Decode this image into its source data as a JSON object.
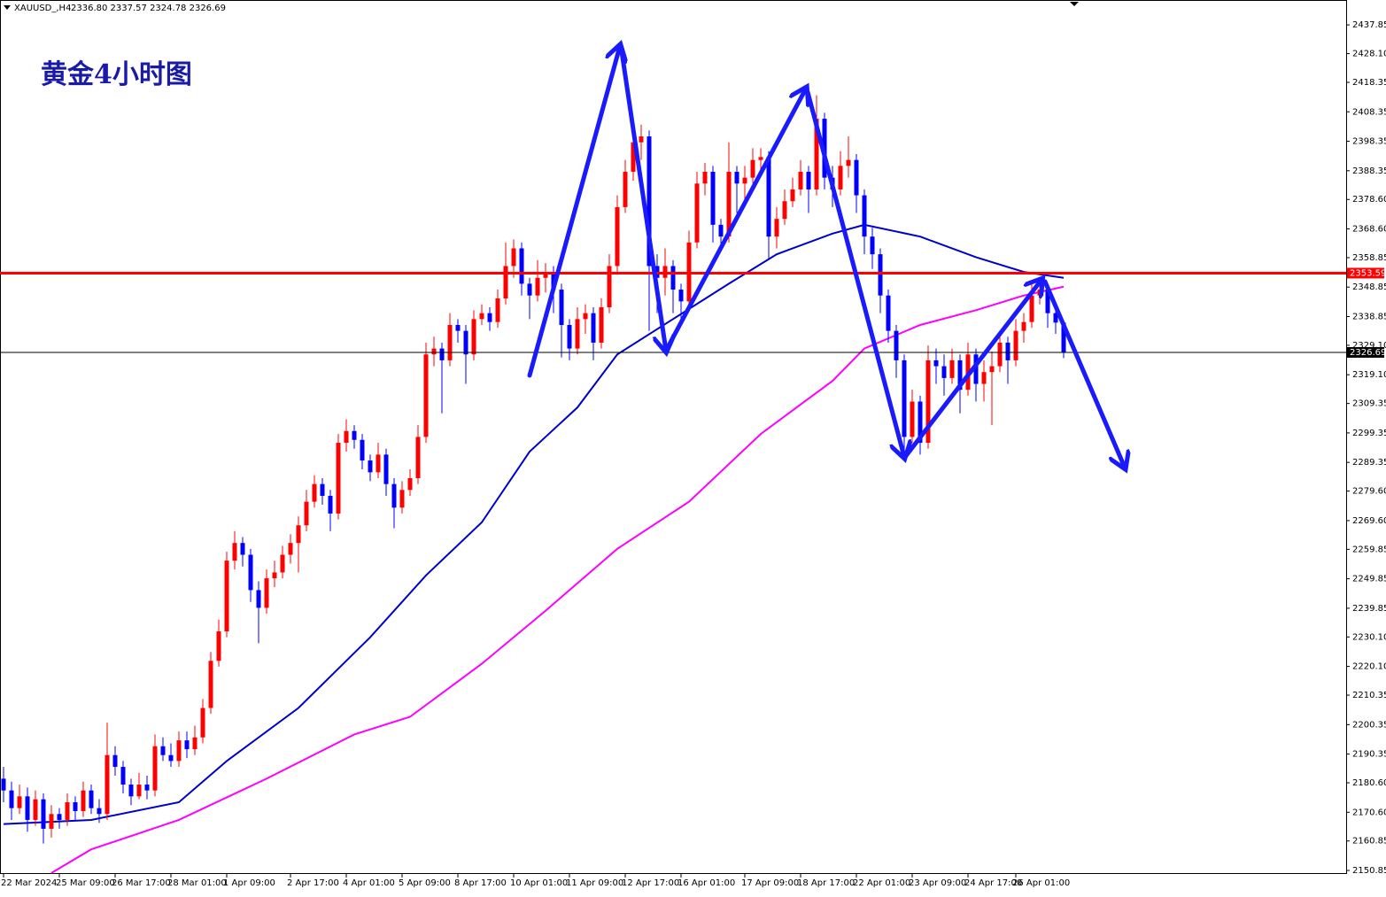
{
  "chart_data": {
    "type": "candlestick",
    "symbol": "XAUUSD_,H4",
    "ohlc_text": "2336.80 2337.57 2324.78 2326.69",
    "title": "黄金4小时图",
    "up_color": "#ff0000",
    "down_color": "#0000ff",
    "ylim": [
      2149.65,
      2446.3
    ],
    "yticks": [
      2437.85,
      {
        "value": 2428.1,
        "label": "2428.10"
      },
      2418.35,
      2408.35,
      2398.35,
      2388.35,
      {
        "value": 2378.6,
        "label": "2378.60"
      },
      {
        "value": 2368.6,
        "label": "2368.60"
      },
      2358.85,
      2348.85,
      2338.85,
      {
        "value": 2329.1,
        "label": "2329.10"
      },
      {
        "value": 2319.1,
        "label": "2319.10"
      },
      2309.35,
      2299.35,
      2289.35,
      {
        "value": 2279.6,
        "label": "2279.60"
      },
      {
        "value": 2269.6,
        "label": "2269.60"
      },
      2259.85,
      2249.85,
      2239.85,
      {
        "value": 2230.1,
        "label": "2230.10"
      },
      {
        "value": 2220.1,
        "label": "2220.10"
      },
      2210.35,
      2200.35,
      2190.35,
      {
        "value": 2180.6,
        "label": "2180.60"
      },
      {
        "value": 2170.6,
        "label": "2170.60"
      },
      2160.85,
      2150.85
    ],
    "categories": [
      "22 Mar 2024",
      null,
      null,
      null,
      null,
      null,
      null,
      "25 Mar 09:00",
      null,
      null,
      null,
      null,
      null,
      null,
      "26 Mar 17:00",
      null,
      null,
      null,
      null,
      null,
      null,
      "28 Mar 01:00",
      null,
      null,
      null,
      null,
      null,
      null,
      "1 Apr 09:00",
      null,
      null,
      null,
      null,
      null,
      null,
      null,
      "2 Apr 17:00",
      null,
      null,
      null,
      null,
      null,
      null,
      "4 Apr 01:00",
      null,
      null,
      null,
      null,
      null,
      null,
      "5 Apr 09:00",
      null,
      null,
      null,
      null,
      null,
      null,
      "8 Apr 17:00",
      null,
      null,
      null,
      null,
      null,
      null,
      "10 Apr 01:00",
      null,
      null,
      null,
      null,
      null,
      null,
      "11 Apr 09:00",
      null,
      null,
      null,
      null,
      null,
      null,
      "12 Apr 17:00",
      null,
      null,
      null,
      null,
      null,
      null,
      "16 Apr 01:00",
      null,
      null,
      null,
      null,
      null,
      null,
      null,
      "17 Apr 09:00",
      null,
      null,
      null,
      null,
      null,
      null,
      "18 Apr 17:00",
      null,
      null,
      null,
      null,
      null,
      null,
      "22 Apr 01:00",
      null,
      null,
      null,
      null,
      null,
      null,
      "23 Apr 09:00",
      null,
      null,
      null,
      null,
      null,
      null,
      "24 Apr 17:00",
      null,
      null,
      null,
      null,
      null,
      "26 Apr 01:00"
    ],
    "candles": [
      [
        2182,
        2186,
        2174,
        2178
      ],
      [
        2178,
        2181,
        2168,
        2172
      ],
      [
        2172,
        2180,
        2170,
        2176
      ],
      [
        2176,
        2179,
        2164,
        2168
      ],
      [
        2168,
        2178,
        2166,
        2175
      ],
      [
        2175,
        2177,
        2160,
        2165
      ],
      [
        2165,
        2173,
        2162,
        2170
      ],
      [
        2170,
        2172,
        2165,
        2168
      ],
      [
        2168,
        2177,
        2166,
        2174
      ],
      [
        2174,
        2176,
        2168,
        2171
      ],
      [
        2171,
        2181,
        2169,
        2178
      ],
      [
        2178,
        2180,
        2170,
        2172
      ],
      [
        2172,
        2175,
        2167,
        2170
      ],
      [
        2170,
        2201,
        2168,
        2190
      ],
      [
        2190,
        2193,
        2183,
        2186
      ],
      [
        2186,
        2188,
        2177,
        2180
      ],
      [
        2180,
        2182,
        2173,
        2176
      ],
      [
        2176,
        2184,
        2175,
        2180
      ],
      [
        2180,
        2183,
        2175,
        2178
      ],
      [
        2178,
        2197,
        2176,
        2193
      ],
      [
        2193,
        2196,
        2188,
        2190
      ],
      [
        2190,
        2194,
        2186,
        2188
      ],
      [
        2188,
        2198,
        2186,
        2195
      ],
      [
        2195,
        2198,
        2189,
        2192
      ],
      [
        2192,
        2200,
        2190,
        2196
      ],
      [
        2196,
        2209,
        2194,
        2206
      ],
      [
        2206,
        2225,
        2204,
        2222
      ],
      [
        2222,
        2236,
        2220,
        2232
      ],
      [
        2232,
        2259,
        2230,
        2256
      ],
      [
        2256,
        2266,
        2253,
        2262
      ],
      [
        2262,
        2264,
        2254,
        2258
      ],
      [
        2258,
        2260,
        2242,
        2246
      ],
      [
        2246,
        2249,
        2228,
        2240
      ],
      [
        2240,
        2253,
        2238,
        2250
      ],
      [
        2250,
        2256,
        2247,
        2252
      ],
      [
        2252,
        2261,
        2250,
        2258
      ],
      [
        2258,
        2265,
        2255,
        2262
      ],
      [
        2262,
        2271,
        2252,
        2268
      ],
      [
        2268,
        2280,
        2266,
        2276
      ],
      [
        2276,
        2285,
        2274,
        2282
      ],
      [
        2282,
        2284,
        2275,
        2278
      ],
      [
        2278,
        2280,
        2266,
        2272
      ],
      [
        2272,
        2299,
        2270,
        2296
      ],
      [
        2296,
        2304,
        2293,
        2300
      ],
      [
        2300,
        2302,
        2294,
        2297
      ],
      [
        2297,
        2299,
        2287,
        2290
      ],
      [
        2290,
        2292,
        2283,
        2286
      ],
      [
        2286,
        2296,
        2284,
        2292
      ],
      [
        2292,
        2294,
        2278,
        2282
      ],
      [
        2282,
        2284,
        2267,
        2274
      ],
      [
        2274,
        2283,
        2272,
        2280
      ],
      [
        2280,
        2287,
        2278,
        2284
      ],
      [
        2284,
        2302,
        2282,
        2298
      ],
      [
        2298,
        2330,
        2296,
        2326
      ],
      [
        2326,
        2332,
        2322,
        2328
      ],
      [
        2328,
        2330,
        2306,
        2324
      ],
      [
        2324,
        2340,
        2322,
        2336
      ],
      [
        2336,
        2338,
        2330,
        2334
      ],
      [
        2334,
        2336,
        2316,
        2326
      ],
      [
        2326,
        2341,
        2324,
        2338
      ],
      [
        2338,
        2343,
        2336,
        2340
      ],
      [
        2340,
        2342,
        2334,
        2337
      ],
      [
        2337,
        2348,
        2335,
        2345
      ],
      [
        2345,
        2364,
        2343,
        2356
      ],
      [
        2356,
        2365,
        2352,
        2362
      ],
      [
        2362,
        2364,
        2346,
        2350
      ],
      [
        2350,
        2352,
        2338,
        2346
      ],
      [
        2346,
        2358,
        2344,
        2352
      ],
      [
        2352,
        2357,
        2347,
        2354
      ],
      [
        2354,
        2356,
        2340,
        2348
      ],
      [
        2348,
        2350,
        2325,
        2336
      ],
      [
        2336,
        2338,
        2324,
        2328
      ],
      [
        2328,
        2342,
        2326,
        2338
      ],
      [
        2338,
        2343,
        2333,
        2340
      ],
      [
        2340,
        2342,
        2324,
        2330
      ],
      [
        2330,
        2345,
        2328,
        2342
      ],
      [
        2342,
        2360,
        2340,
        2356
      ],
      [
        2356,
        2380,
        2354,
        2376
      ],
      [
        2376,
        2392,
        2374,
        2388
      ],
      [
        2388,
        2402,
        2385,
        2398
      ],
      [
        2398,
        2404,
        2392,
        2400
      ],
      [
        2400,
        2402,
        2334,
        2356
      ],
      [
        2356,
        2360,
        2340,
        2352
      ],
      [
        2352,
        2362,
        2346,
        2356
      ],
      [
        2356,
        2358,
        2340,
        2348
      ],
      [
        2348,
        2350,
        2338,
        2344
      ],
      [
        2344,
        2368,
        2342,
        2364
      ],
      [
        2364,
        2388,
        2362,
        2384
      ],
      [
        2384,
        2391,
        2380,
        2388
      ],
      [
        2388,
        2390,
        2364,
        2370
      ],
      [
        2370,
        2372,
        2362,
        2366
      ],
      [
        2366,
        2398,
        2364,
        2388
      ],
      [
        2388,
        2390,
        2374,
        2384
      ],
      [
        2384,
        2390,
        2378,
        2386
      ],
      [
        2386,
        2396,
        2384,
        2392
      ],
      [
        2392,
        2396,
        2388,
        2393
      ],
      [
        2393,
        2395,
        2358,
        2366
      ],
      [
        2366,
        2376,
        2362,
        2372
      ],
      [
        2372,
        2382,
        2370,
        2378
      ],
      [
        2378,
        2386,
        2376,
        2382
      ],
      [
        2382,
        2392,
        2380,
        2388
      ],
      [
        2388,
        2390,
        2374,
        2382
      ],
      [
        2382,
        2414,
        2380,
        2406
      ],
      [
        2406,
        2408,
        2382,
        2386
      ],
      [
        2386,
        2390,
        2376,
        2382
      ],
      [
        2382,
        2395,
        2380,
        2390
      ],
      [
        2390,
        2400,
        2386,
        2392
      ],
      [
        2392,
        2394,
        2374,
        2380
      ],
      [
        2380,
        2382,
        2360,
        2366
      ],
      [
        2366,
        2369,
        2355,
        2360
      ],
      [
        2360,
        2362,
        2340,
        2346
      ],
      [
        2346,
        2348,
        2330,
        2334
      ],
      [
        2334,
        2336,
        2318,
        2324
      ],
      [
        2324,
        2326,
        2292,
        2298
      ],
      [
        2298,
        2314,
        2296,
        2310
      ],
      [
        2310,
        2312,
        2292,
        2296
      ],
      [
        2296,
        2329,
        2294,
        2324
      ],
      [
        2324,
        2328,
        2316,
        2322
      ],
      [
        2322,
        2326,
        2312,
        2318
      ],
      [
        2318,
        2328,
        2316,
        2324
      ],
      [
        2324,
        2326,
        2306,
        2314
      ],
      [
        2314,
        2330,
        2312,
        2326
      ],
      [
        2326,
        2328,
        2310,
        2316
      ],
      [
        2316,
        2324,
        2310,
        2320
      ],
      [
        2320,
        2327,
        2302,
        2322
      ],
      [
        2322,
        2334,
        2320,
        2330
      ],
      [
        2330,
        2332,
        2316,
        2324
      ],
      [
        2324,
        2338,
        2322,
        2334
      ],
      [
        2334,
        2340,
        2330,
        2337
      ],
      [
        2337,
        2350,
        2335,
        2346
      ],
      [
        2346,
        2352,
        2343,
        2348
      ],
      [
        2348,
        2350,
        2335,
        2340
      ],
      [
        2340,
        2342,
        2333,
        2336.8
      ],
      [
        2336.8,
        2337.57,
        2324.78,
        2326.69
      ]
    ],
    "moving_averages": [
      {
        "color": "#0000cc",
        "x": [
          0,
          11,
          22,
          28,
          37,
          46,
          53,
          60,
          66,
          72,
          77,
          84,
          91,
          97,
          104,
          108,
          115,
          122,
          128,
          133
        ],
        "values": [
          2166.6,
          2168,
          2174,
          2188,
          2206,
          2230,
          2251,
          2269,
          2293,
          2308,
          2326,
          2338,
          2350,
          2360,
          2367,
          2370,
          2366,
          2359,
          2354,
          2352
        ]
      },
      {
        "color": "#ff00ff",
        "x": [
          6,
          11,
          22,
          33,
          44,
          51,
          60,
          68,
          77,
          86,
          95,
          104,
          108,
          115,
          122,
          128,
          133
        ],
        "values": [
          2150,
          2158,
          2168,
          2182,
          2197,
          2203,
          2221,
          2239,
          2260,
          2276,
          2299,
          2317,
          2328,
          2336,
          2341,
          2346,
          2349
        ]
      }
    ],
    "hlines": [
      {
        "value": 2353.59,
        "color": "#ff0000"
      },
      {
        "value": 2326.69,
        "color": "#000000"
      }
    ]
  }
}
